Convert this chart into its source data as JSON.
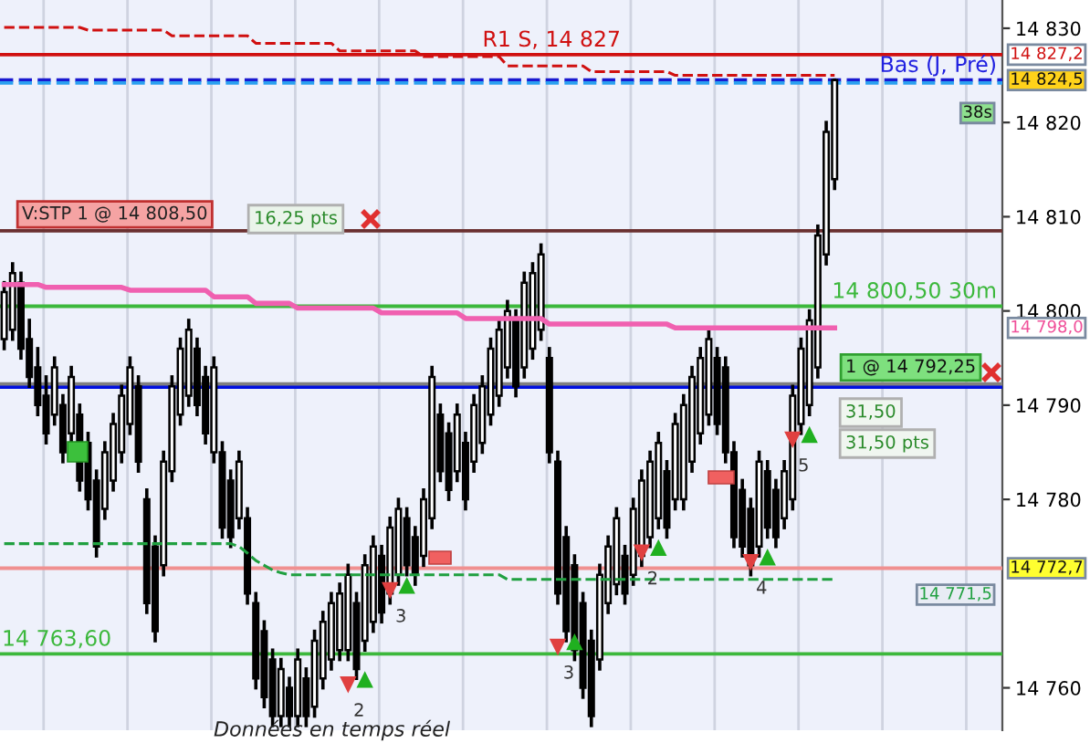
{
  "chart_data": {
    "type": "candlestick",
    "categories": [
      null,
      null,
      null,
      null,
      null,
      null,
      null,
      null,
      null,
      null,
      null,
      null,
      null,
      null,
      null,
      null,
      null,
      null,
      null,
      null,
      null,
      null,
      null,
      null,
      null,
      null,
      null,
      null,
      null,
      null,
      null,
      null,
      null,
      null,
      null,
      null,
      null,
      null,
      null,
      null,
      null,
      null,
      null,
      null,
      null,
      null,
      null,
      null,
      null,
      null,
      null,
      null,
      null,
      null,
      null,
      null,
      null,
      null,
      null,
      null,
      null,
      null,
      null,
      null,
      null,
      null,
      null,
      null,
      null,
      null,
      null,
      null,
      null,
      null,
      null,
      null,
      null,
      null,
      null,
      null,
      null,
      null,
      null,
      null,
      null,
      null,
      null,
      null,
      null,
      null,
      null,
      null,
      null,
      null,
      null,
      null,
      null,
      null,
      null,
      null
    ],
    "ohlc": [
      [
        14797,
        14803,
        14796,
        14802
      ],
      [
        14798,
        14805,
        14797,
        14804
      ],
      [
        14803,
        14804,
        14795,
        14796
      ],
      [
        14797,
        14799,
        14792,
        14793
      ],
      [
        14794,
        14796,
        14789,
        14790
      ],
      [
        14791,
        14793,
        14786,
        14787
      ],
      [
        14789,
        14795,
        14788,
        14794
      ],
      [
        14790,
        14791,
        14784,
        14785
      ],
      [
        14787,
        14794,
        14786,
        14793
      ],
      [
        14789,
        14790,
        14781,
        14782
      ],
      [
        14786,
        14787,
        14779,
        14780
      ],
      [
        14782,
        14783,
        14774,
        14775
      ],
      [
        14779,
        14786,
        14778,
        14785
      ],
      [
        14782,
        14789,
        14781,
        14788
      ],
      [
        14785,
        14792,
        14784,
        14791
      ],
      [
        14788,
        14795,
        14787,
        14794
      ],
      [
        14792,
        14793,
        14783,
        14784
      ],
      [
        14780,
        14781,
        14768,
        14769
      ],
      [
        14775,
        14776,
        14765,
        14766
      ],
      [
        14773,
        14785,
        14772,
        14784
      ],
      [
        14783,
        14793,
        14782,
        14792
      ],
      [
        14789,
        14797,
        14788,
        14796
      ],
      [
        14791,
        14799,
        14790,
        14798
      ],
      [
        14796,
        14797,
        14789,
        14790
      ],
      [
        14793,
        14794,
        14786,
        14787
      ],
      [
        14785,
        14795,
        14784,
        14794
      ],
      [
        14785,
        14786,
        14776,
        14777
      ],
      [
        14782,
        14783,
        14775,
        14776
      ],
      [
        14778,
        14785,
        14777,
        14784
      ],
      [
        14778,
        14779,
        14769,
        14770
      ],
      [
        14769,
        14770,
        14760,
        14761
      ],
      [
        14766,
        14767,
        14758,
        14759
      ],
      [
        14763,
        14764,
        14756,
        14757
      ],
      [
        14757,
        14763,
        14756,
        14762
      ],
      [
        14760,
        14761,
        14756,
        14757
      ],
      [
        14757,
        14764,
        14756,
        14763
      ],
      [
        14761,
        14762,
        14756,
        14757
      ],
      [
        14758,
        14766,
        14757,
        14765
      ],
      [
        14761,
        14768,
        14760,
        14767
      ],
      [
        14763,
        14770,
        14762,
        14769
      ],
      [
        14764,
        14771,
        14763,
        14770
      ],
      [
        14764,
        14773,
        14763,
        14772
      ],
      [
        14769,
        14770,
        14761,
        14762
      ],
      [
        14765,
        14774,
        14764,
        14773
      ],
      [
        14767,
        14776,
        14766,
        14775
      ],
      [
        14774,
        14775,
        14767,
        14768
      ],
      [
        14770,
        14778,
        14769,
        14777
      ],
      [
        14772,
        14780,
        14771,
        14779
      ],
      [
        14778,
        14779,
        14772,
        14773
      ],
      [
        14776,
        14777,
        14771,
        14772
      ],
      [
        14774,
        14781,
        14773,
        14780
      ],
      [
        14778,
        14794,
        14777,
        14793
      ],
      [
        14789,
        14790,
        14782,
        14783
      ],
      [
        14787,
        14788,
        14780,
        14781
      ],
      [
        14783,
        14790,
        14782,
        14789
      ],
      [
        14786,
        14787,
        14779,
        14780
      ],
      [
        14784,
        14791,
        14783,
        14790
      ],
      [
        14786,
        14793,
        14785,
        14792
      ],
      [
        14789,
        14797,
        14788,
        14796
      ],
      [
        14791,
        14799,
        14790,
        14798
      ],
      [
        14794,
        14801,
        14793,
        14800
      ],
      [
        14799,
        14800,
        14791,
        14792
      ],
      [
        14794,
        14804,
        14793,
        14803
      ],
      [
        14796,
        14805,
        14795,
        14804
      ],
      [
        14798,
        14807,
        14797,
        14806
      ],
      [
        14795,
        14796,
        14784,
        14785
      ],
      [
        14784,
        14785,
        14769,
        14770
      ],
      [
        14776,
        14777,
        14765,
        14766
      ],
      [
        14773,
        14774,
        14763,
        14764
      ],
      [
        14769,
        14770,
        14759,
        14760
      ],
      [
        14765,
        14766,
        14756,
        14757
      ],
      [
        14763,
        14773,
        14762,
        14772
      ],
      [
        14769,
        14776,
        14768,
        14775
      ],
      [
        14771,
        14779,
        14770,
        14778
      ],
      [
        14774,
        14775,
        14769,
        14770
      ],
      [
        14772,
        14780,
        14771,
        14779
      ],
      [
        14774,
        14783,
        14773,
        14782
      ],
      [
        14776,
        14785,
        14775,
        14784
      ],
      [
        14778,
        14787,
        14777,
        14786
      ],
      [
        14783,
        14784,
        14776,
        14777
      ],
      [
        14780,
        14789,
        14779,
        14788
      ],
      [
        14780,
        14791,
        14779,
        14790
      ],
      [
        14784,
        14794,
        14783,
        14793
      ],
      [
        14787,
        14796,
        14786,
        14795
      ],
      [
        14789,
        14798,
        14788,
        14797
      ],
      [
        14795,
        14796,
        14787,
        14788
      ],
      [
        14794,
        14795,
        14784,
        14785
      ],
      [
        14785,
        14786,
        14775,
        14776
      ],
      [
        14781,
        14782,
        14774,
        14775
      ],
      [
        14779,
        14780,
        14772,
        14773
      ],
      [
        14775,
        14785,
        14774,
        14784
      ],
      [
        14783,
        14784,
        14776,
        14777
      ],
      [
        14781,
        14782,
        14775,
        14776
      ],
      [
        14778,
        14784,
        14777,
        14783
      ],
      [
        14780,
        14792,
        14779,
        14791
      ],
      [
        14788,
        14797,
        14787,
        14796
      ],
      [
        14790,
        14800,
        14789,
        14799
      ],
      [
        14794,
        14809,
        14793,
        14808
      ],
      [
        14806,
        14820,
        14805,
        14819
      ],
      [
        14814,
        14824.5,
        14813,
        14824.5
      ]
    ],
    "series": [
      {
        "type": "line",
        "color": "#f060b0",
        "line_style": "solid",
        "values": [
          14802.8,
          14802.8,
          14802.8,
          14802.8,
          14802.8,
          14802.5,
          14802.5,
          14802.5,
          14802.5,
          14802.5,
          14802.5,
          14802.5,
          14802.5,
          14802.5,
          14802.5,
          14802.2,
          14802.2,
          14802.2,
          14802.2,
          14802.2,
          14802.2,
          14802.2,
          14802.2,
          14802.2,
          14802.2,
          14801.5,
          14801.5,
          14801.5,
          14801.5,
          14801.5,
          14800.8,
          14800.8,
          14800.8,
          14800.8,
          14800.8,
          14800.3,
          14800.3,
          14800.3,
          14800.3,
          14800.3,
          14800.3,
          14800.3,
          14800.3,
          14800.3,
          14800.3,
          14799.8,
          14799.8,
          14799.8,
          14799.8,
          14799.8,
          14799.8,
          14799.8,
          14799.8,
          14799.8,
          14799.8,
          14799.2,
          14799.2,
          14799.2,
          14799.2,
          14799.2,
          14799.2,
          14799.2,
          14799.2,
          14799.2,
          14799.2,
          14798.6,
          14798.6,
          14798.6,
          14798.6,
          14798.6,
          14798.6,
          14798.6,
          14798.6,
          14798.6,
          14798.6,
          14798.6,
          14798.6,
          14798.6,
          14798.6,
          14798.6,
          14798.2,
          14798.2,
          14798.2,
          14798.2,
          14798.2,
          14798.2,
          14798.2,
          14798.2,
          14798.2,
          14798.2,
          14798.2,
          14798.2,
          14798.2,
          14798.2,
          14798.2,
          14798.2,
          14798.2,
          14798.2,
          14798.2,
          14798.2
        ]
      },
      {
        "type": "line",
        "color": "#d01010",
        "line_style": "dashed",
        "values": [
          14830.1,
          14830.1,
          14830.1,
          14830.1,
          14830.1,
          14830.1,
          14830.1,
          14830.1,
          14830.1,
          14830.1,
          14829.8,
          14829.8,
          14829.8,
          14829.8,
          14829.8,
          14829.8,
          14829.8,
          14829.8,
          14829.8,
          14829.8,
          14829.2,
          14829.2,
          14829.2,
          14829.2,
          14829.2,
          14829.2,
          14829.2,
          14829.2,
          14829.2,
          14829.2,
          14828.4,
          14828.4,
          14828.4,
          14828.4,
          14828.4,
          14828.4,
          14828.4,
          14828.4,
          14828.4,
          14828.4,
          14827.6,
          14827.6,
          14827.6,
          14827.6,
          14827.6,
          14827.6,
          14827.6,
          14827.6,
          14827.6,
          14827.6,
          14827,
          14827,
          14827,
          14827,
          14827,
          14827,
          14827,
          14827,
          14827,
          14827,
          14826,
          14826,
          14826,
          14826,
          14826,
          14826,
          14826,
          14826,
          14826,
          14826,
          14825.4,
          14825.4,
          14825.4,
          14825.4,
          14825.4,
          14825.4,
          14825.4,
          14825.4,
          14825.4,
          14825.4,
          14825,
          14825,
          14825,
          14825,
          14825,
          14825,
          14825,
          14825,
          14825,
          14825,
          14825,
          14825,
          14825,
          14825,
          14825,
          14825,
          14825,
          14825,
          14825,
          14825
        ]
      },
      {
        "type": "line",
        "color": "#20a040",
        "line_style": "dashed",
        "values": [
          14775.3,
          14775.3,
          14775.3,
          14775.3,
          14775.3,
          14775.3,
          14775.3,
          14775.3,
          14775.3,
          14775.3,
          14775.3,
          14775.3,
          14775.3,
          14775.3,
          14775.3,
          14775.3,
          14775.3,
          14775.3,
          14775.3,
          14775.3,
          14775.3,
          14775.3,
          14775.3,
          14775.3,
          14775.3,
          14775.3,
          14775.3,
          14775.3,
          14775,
          14774.3,
          14773.5,
          14773,
          14772.5,
          14772.2,
          14772,
          14772,
          14772,
          14772,
          14772,
          14772,
          14772,
          14772,
          14772,
          14772,
          14772,
          14772,
          14772,
          14772,
          14772,
          14772,
          14772,
          14772,
          14772,
          14772,
          14772,
          14772,
          14772,
          14772,
          14772,
          14772,
          14771.5,
          14771.5,
          14771.5,
          14771.5,
          14771.5,
          14771.5,
          14771.5,
          14771.5,
          14771.5,
          14771.5,
          14771.5,
          14771.5,
          14771.5,
          14771.5,
          14771.5,
          14771.5,
          14771.5,
          14771.5,
          14771.5,
          14771.5,
          14771.5,
          14771.5,
          14771.5,
          14771.5,
          14771.5,
          14771.5,
          14771.5,
          14771.5,
          14771.5,
          14771.5,
          14771.5,
          14771.5,
          14771.5,
          14771.5,
          14771.5,
          14771.5,
          14771.5,
          14771.5,
          14771.5,
          14771.5
        ]
      }
    ],
    "ylim": [
      14755.5,
      14833
    ],
    "yticks": [
      {
        "value": 14760,
        "label": "14 760"
      },
      {
        "value": 14780,
        "label": "14 780"
      },
      {
        "value": 14790,
        "label": "14 790"
      },
      {
        "value": 14800,
        "label": "14 800"
      },
      {
        "value": 14810,
        "label": "14 810"
      },
      {
        "value": 14820,
        "label": "14 820"
      },
      {
        "value": 14830,
        "label": "14 830"
      }
    ],
    "tick_labels": "y",
    "grid": "x",
    "ref_lines": [
      {
        "axis": "y",
        "value": 14827.2,
        "label": "R1 S, 14 827",
        "color": "#d01010"
      },
      {
        "axis": "y",
        "value": 14824.5,
        "label": "Bas (J, Pré)",
        "color": "#1a1ad0",
        "line_style": "dashed"
      },
      {
        "axis": "y",
        "value": 14824.2,
        "color": "#2aa0f0",
        "line_style": "dashed"
      },
      {
        "axis": "y",
        "value": 14808.5,
        "label": "V:STP 1 @ 14 808,50",
        "color": "#6a3030"
      },
      {
        "axis": "y",
        "value": 14800.5,
        "label": "14 800,50 30m",
        "color": "#3cb83c"
      },
      {
        "axis": "y",
        "value": 14792,
        "color": "#0010e0"
      },
      {
        "axis": "y",
        "value": 14792.25,
        "label": "1 @ 14 792,25",
        "color": "#808080"
      },
      {
        "axis": "y",
        "value": 14772.7,
        "color": "#f09090"
      },
      {
        "axis": "y",
        "value": 14763.6,
        "label": "14 763,60",
        "color": "#3cb83c"
      }
    ],
    "annotations": [
      "16,25 pts",
      "31,50",
      "31,50 pts",
      "14 827,2",
      "14 824,5",
      "38s",
      "14 798,0",
      "14 772,7",
      "14 771,5",
      "2",
      "3",
      "3",
      "2",
      "4",
      "5",
      "Données en temps réel"
    ]
  }
}
